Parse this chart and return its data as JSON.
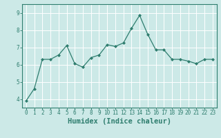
{
  "xlabel": "Humidex (Indice chaleur)",
  "ylabel": "",
  "x_values": [
    0,
    1,
    2,
    3,
    4,
    5,
    6,
    7,
    8,
    9,
    10,
    11,
    12,
    13,
    14,
    15,
    16,
    17,
    18,
    19,
    20,
    21,
    22,
    23
  ],
  "y_values": [
    3.9,
    4.6,
    6.3,
    6.3,
    6.55,
    7.1,
    6.05,
    5.85,
    6.4,
    6.55,
    7.15,
    7.05,
    7.25,
    8.1,
    8.85,
    7.75,
    6.85,
    6.85,
    6.3,
    6.3,
    6.2,
    6.05,
    6.3,
    6.3
  ],
  "line_color": "#2e7d6e",
  "marker": "D",
  "marker_size": 2.0,
  "bg_color": "#cce9e7",
  "grid_color": "#ffffff",
  "ylim": [
    3.5,
    9.5
  ],
  "xlim": [
    -0.5,
    23.5
  ],
  "yticks": [
    4,
    5,
    6,
    7,
    8,
    9
  ],
  "xticks": [
    0,
    1,
    2,
    3,
    4,
    5,
    6,
    7,
    8,
    9,
    10,
    11,
    12,
    13,
    14,
    15,
    16,
    17,
    18,
    19,
    20,
    21,
    22,
    23
  ],
  "tick_fontsize": 5.5,
  "label_fontsize": 7.5
}
